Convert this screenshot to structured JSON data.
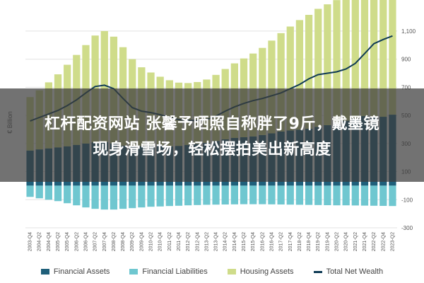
{
  "overlay": {
    "line1": "杠杆配资网站 张馨予晒照自称胖了9斤，戴墨镜",
    "line2": "现身滑雪场，轻松摆拍美出新高度"
  },
  "colors": {
    "financial_assets": "#1f5f7a",
    "financial_liabilities": "#6fc7d0",
    "housing_assets": "#cfdc8a",
    "net_wealth": "#0e3a55"
  },
  "chart_data": {
    "type": "area",
    "ylabel": "€ Billion",
    "ylim": [
      -300,
      1200
    ],
    "yticks": [
      -300,
      -100,
      100,
      300,
      500,
      700,
      900,
      1100
    ],
    "ytick_labels": [
      "-300",
      "-100",
      "100",
      "300",
      "500",
      "700",
      "900",
      "1,100"
    ],
    "grid": true,
    "legend_position": "bottom",
    "x": [
      "2003-Q4",
      "2004-Q2",
      "2004-Q4",
      "2005-Q2",
      "2005-Q4",
      "2006-Q2",
      "2006-Q4",
      "2007-Q2",
      "2007-Q4",
      "2008-Q2",
      "2008-Q4",
      "2009-Q2",
      "2009-Q4",
      "2010-Q2",
      "2010-Q4",
      "2011-Q2",
      "2011-Q4",
      "2012-Q2",
      "2012-Q4",
      "2013-Q2",
      "2013-Q4",
      "2014-Q2",
      "2014-Q4",
      "2015-Q2",
      "2015-Q4",
      "2016-Q2",
      "2016-Q4",
      "2017-Q2",
      "2017-Q4",
      "2018-Q2",
      "2018-Q4",
      "2019-Q2",
      "2019-Q4",
      "2020-Q2",
      "2020-Q4",
      "2021-Q2",
      "2021-Q4",
      "2022-Q2",
      "2022-Q4",
      "2023-Q2"
    ],
    "series": [
      {
        "name": "Financial Assets",
        "values": [
          250,
          258,
          265,
          272,
          280,
          290,
          300,
          308,
          310,
          300,
          285,
          280,
          282,
          285,
          285,
          280,
          283,
          290,
          297,
          305,
          318,
          330,
          340,
          345,
          350,
          360,
          372,
          385,
          392,
          398,
          405,
          418,
          430,
          440,
          462,
          478,
          495,
          490,
          490,
          505
        ]
      },
      {
        "name": "Financial Liabilities",
        "values": [
          -80,
          -90,
          -100,
          -110,
          -125,
          -140,
          -155,
          -165,
          -170,
          -170,
          -165,
          -160,
          -155,
          -150,
          -148,
          -145,
          -143,
          -140,
          -138,
          -136,
          -135,
          -134,
          -133,
          -132,
          -132,
          -132,
          -133,
          -134,
          -135,
          -136,
          -137,
          -138,
          -139,
          -140,
          -140,
          -141,
          -142,
          -143,
          -144,
          -145
        ]
      },
      {
        "name": "Housing Assets",
        "values": [
          380,
          420,
          470,
          520,
          580,
          640,
          700,
          760,
          790,
          760,
          700,
          620,
          560,
          520,
          490,
          470,
          450,
          440,
          440,
          450,
          470,
          500,
          530,
          560,
          590,
          620,
          660,
          700,
          740,
          780,
          810,
          840,
          860,
          880,
          900,
          950,
          1010,
          1060,
          1090,
          1120
        ]
      },
      {
        "name": "Total Net Wealth",
        "values": [
          460,
          485,
          510,
          535,
          570,
          610,
          660,
          705,
          715,
          690,
          620,
          555,
          530,
          520,
          505,
          485,
          470,
          465,
          462,
          470,
          495,
          530,
          560,
          585,
          605,
          620,
          640,
          660,
          690,
          720,
          760,
          790,
          800,
          810,
          830,
          870,
          940,
          1010,
          1040,
          1065
        ]
      }
    ]
  }
}
